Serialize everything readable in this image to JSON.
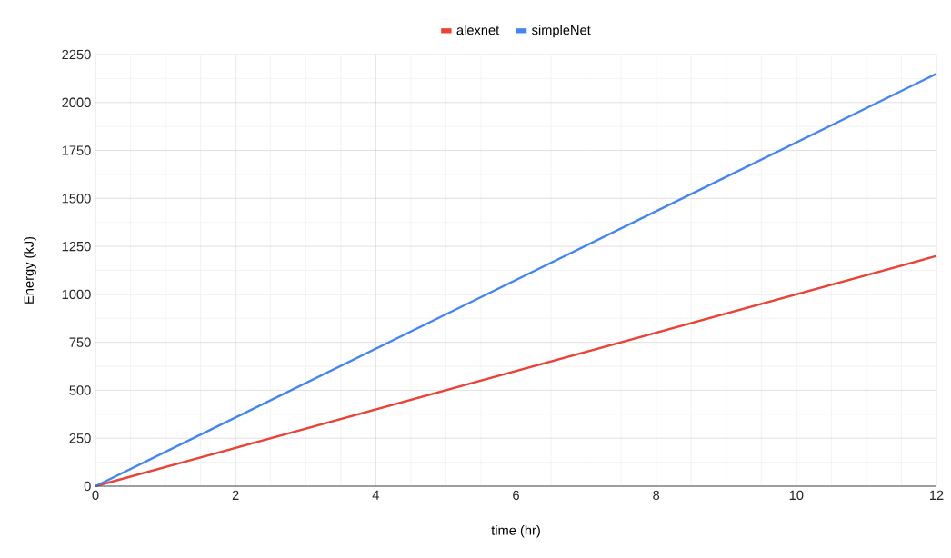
{
  "chart_data": {
    "type": "line",
    "xlabel": "time (hr)",
    "ylabel": "Energy (kJ)",
    "x": [
      0,
      12
    ],
    "series": [
      {
        "name": "alexnet",
        "color": "#ea4335",
        "values": [
          0,
          1200
        ]
      },
      {
        "name": "simpleNet",
        "color": "#4285f4",
        "values": [
          0,
          2150
        ]
      }
    ],
    "xlim": [
      0,
      12
    ],
    "xticks": [
      0,
      2,
      4,
      6,
      8,
      10,
      12
    ],
    "ylim": [
      0,
      2250
    ],
    "yticks": [
      0,
      250,
      500,
      750,
      1000,
      1250,
      1500,
      1750,
      2000,
      2250
    ],
    "grid": true,
    "legend": "top",
    "marker": "none",
    "line_style": "solid"
  }
}
